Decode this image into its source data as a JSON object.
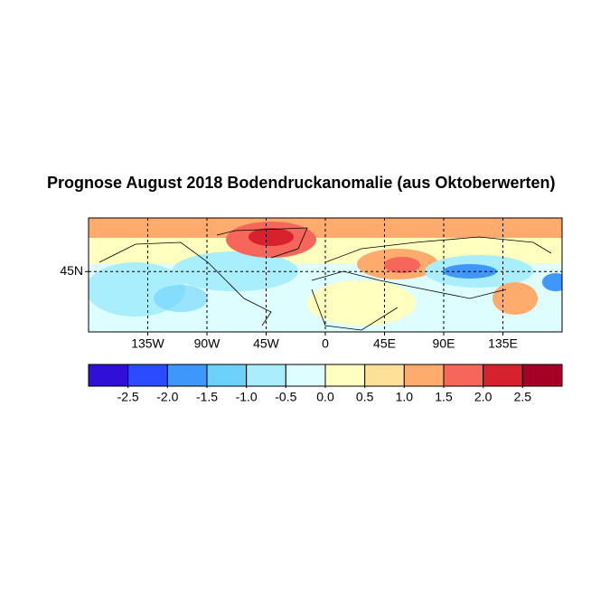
{
  "chart_data": {
    "type": "map",
    "title": "Prognose August 2018 Bodendruckanomalie (aus Oktoberwerten)",
    "xlim": [
      -180,
      180
    ],
    "ylim": [
      0,
      85
    ],
    "xticks": [
      {
        "value": -135,
        "label": "135W"
      },
      {
        "value": -90,
        "label": "90W"
      },
      {
        "value": -45,
        "label": "45W"
      },
      0,
      {
        "value": 45,
        "label": "45E"
      },
      {
        "value": 90,
        "label": "90E"
      },
      {
        "value": 135,
        "label": "135E"
      }
    ],
    "yticks": [
      {
        "value": 45,
        "label": "45N"
      }
    ],
    "grid": true,
    "colorbar": {
      "lim": [
        -3,
        3
      ],
      "colors": [
        "#3010d8",
        "#2a4bff",
        "#3e97fb",
        "#6dd2fb",
        "#a8eefd",
        "#ddfdfe",
        "#ffffc0",
        "#ffe098",
        "#ffab6e",
        "#f7665a",
        "#d7222e",
        "#a50026"
      ],
      "ticks": [
        -2.5,
        {
          "value": -2,
          "label": "-2.0"
        },
        -1.5,
        {
          "value": -1,
          "label": "-1.0"
        },
        -0.5,
        {
          "value": 0,
          "label": "0.0"
        },
        0.5,
        {
          "value": 1,
          "label": "1.0"
        },
        1.5,
        {
          "value": 2,
          "label": "2.0"
        },
        2.5
      ]
    }
  }
}
